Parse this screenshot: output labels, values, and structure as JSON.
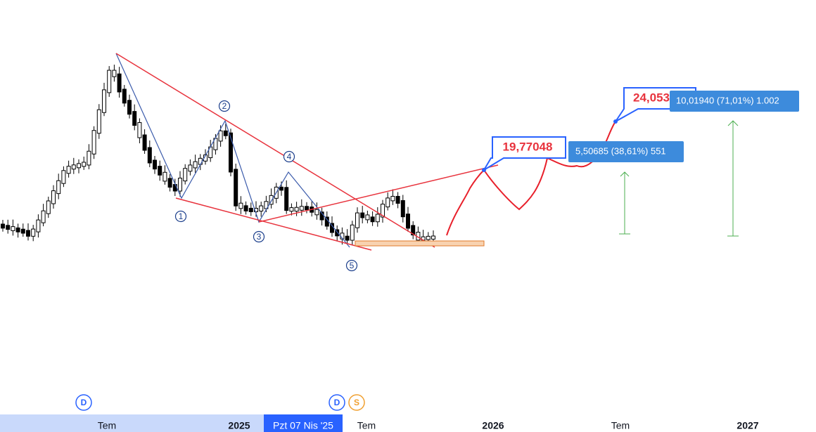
{
  "waves": [
    "1",
    "2",
    "3",
    "4",
    "5"
  ],
  "callouts": {
    "target_1": "19,77048",
    "target_2": "24,053"
  },
  "measures": {
    "measure_1": "5,50685 (38,61%) 551",
    "measure_2": "10,01940 (71,01%) 1.002"
  },
  "badges": {
    "badge_1": "D",
    "badge_2": "D",
    "badge_3": "S"
  },
  "time_axis": {
    "labels": [
      "Tem",
      "2025",
      "Pzt 07 Nis '25",
      "Tem",
      "2026",
      "Tem",
      "2027"
    ]
  }
}
